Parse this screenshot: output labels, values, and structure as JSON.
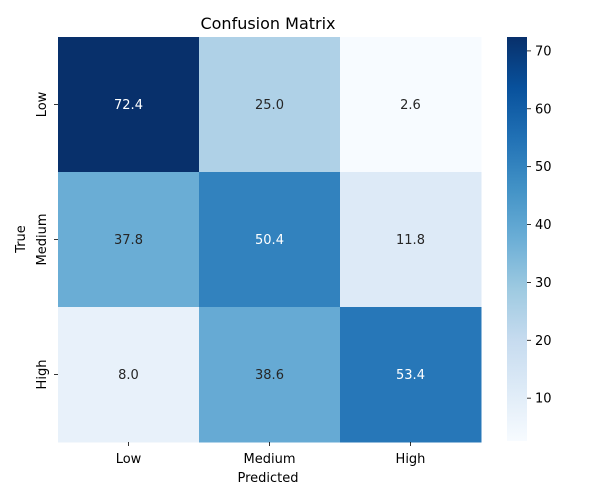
{
  "chart_data": {
    "type": "heatmap",
    "title": "Confusion Matrix",
    "xlabel": "Predicted",
    "ylabel": "True",
    "x_categories": [
      "Low",
      "Medium",
      "High"
    ],
    "y_categories": [
      "Low",
      "Medium",
      "High"
    ],
    "values": [
      [
        72.4,
        25.0,
        2.6
      ],
      [
        37.8,
        50.4,
        11.8
      ],
      [
        8.0,
        38.6,
        53.4
      ]
    ],
    "cell_labels": [
      [
        "72.4",
        "25.0",
        "2.6"
      ],
      [
        "37.8",
        "50.4",
        "11.8"
      ],
      [
        "8.0",
        "38.6",
        "53.4"
      ]
    ],
    "colormap": "Blues",
    "vmin": 2.6,
    "vmax": 72.4,
    "colorbar_ticks": [
      10,
      20,
      30,
      40,
      50,
      60,
      70
    ],
    "colorbar_tick_labels": [
      "10",
      "20",
      "30",
      "40",
      "50",
      "60",
      "70"
    ],
    "grid": false
  }
}
